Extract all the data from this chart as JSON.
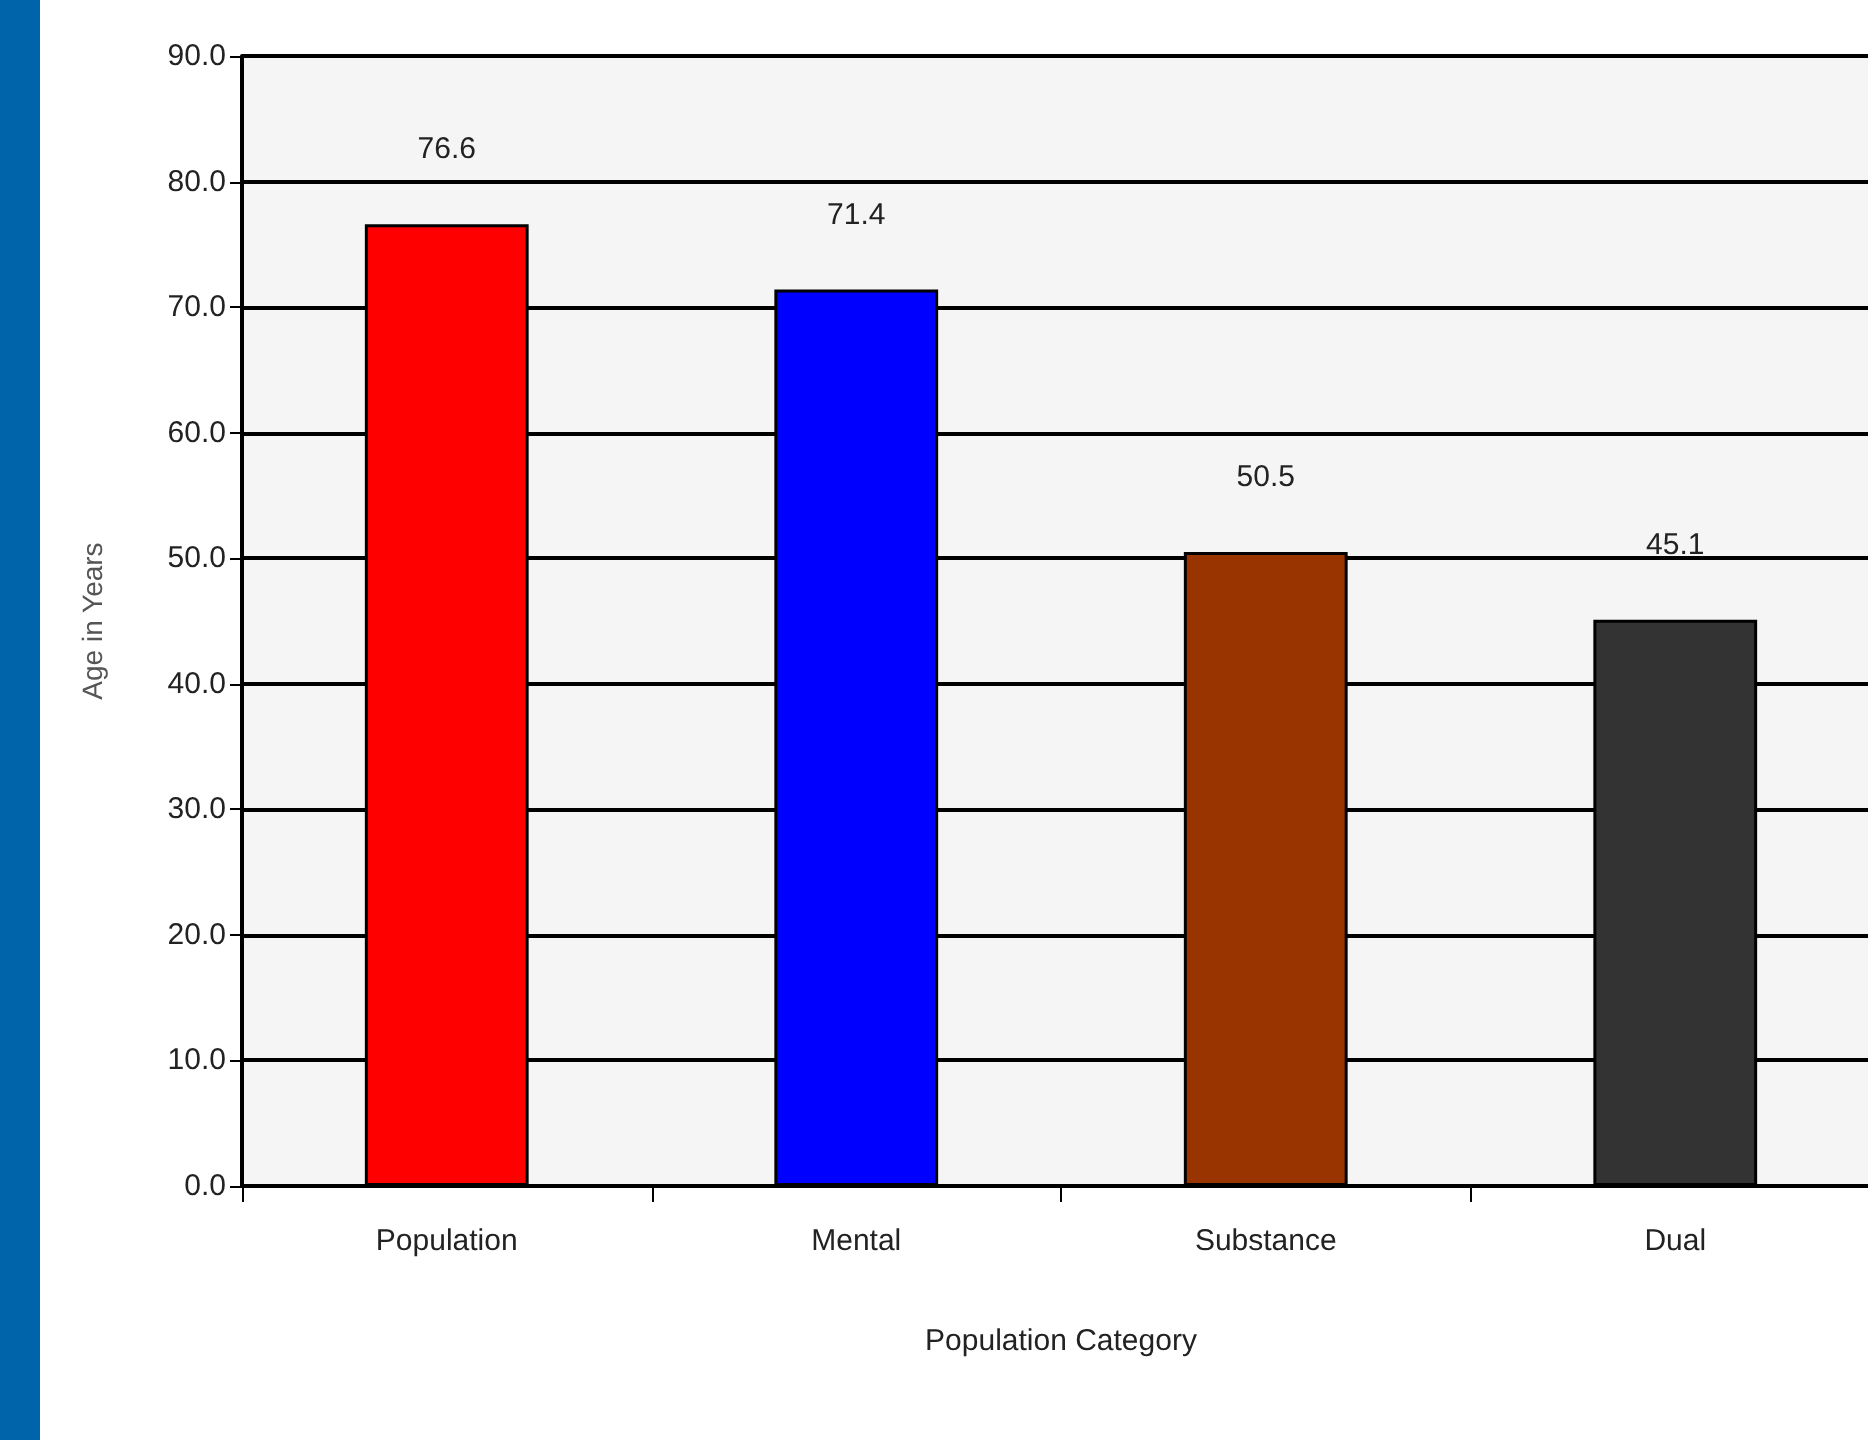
{
  "chart_data": {
    "type": "bar",
    "xlabel": "Population Category",
    "ylabel": "Age in Years",
    "categories": [
      "Population",
      "Mental",
      "Substance",
      "Dual"
    ],
    "values": [
      76.6,
      71.4,
      50.5,
      45.1
    ],
    "colors": [
      "#ff0000",
      "#0000ff",
      "#993300",
      "#333333"
    ],
    "ylim": [
      0,
      90
    ],
    "yticks": [
      {
        "value": 0,
        "label": "0.0"
      },
      {
        "value": 10,
        "label": "10.0"
      },
      {
        "value": 20,
        "label": "20.0"
      },
      {
        "value": 30,
        "label": "30.0"
      },
      {
        "value": 40,
        "label": "40.0"
      },
      {
        "value": 50,
        "label": "50.0"
      },
      {
        "value": 60,
        "label": "60.0"
      },
      {
        "value": 70,
        "label": "70.0"
      },
      {
        "value": 80,
        "label": "80.0"
      },
      {
        "value": 90,
        "label": "90.0"
      }
    ],
    "grid": "y",
    "data_labels": true
  }
}
